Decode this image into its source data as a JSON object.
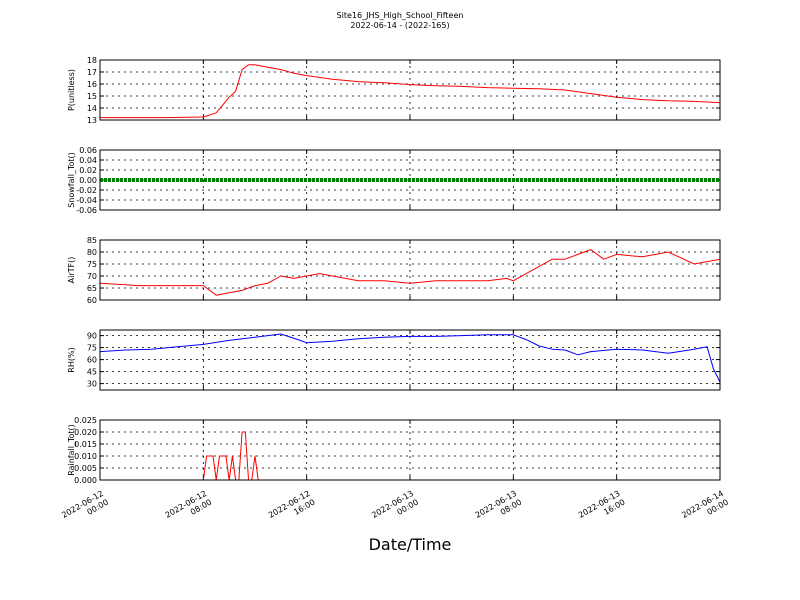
{
  "chart_data": {
    "type": "line",
    "title": "Site16_JHS_High_School_Fifteen",
    "subtitle": "2022-06-14 - (2022-165)",
    "xlabel": "Date/Time",
    "x_ticks": [
      "2022-06-12 00:00",
      "2022-06-12 08:00",
      "2022-06-12 16:00",
      "2022-06-13 00:00",
      "2022-06-13 08:00",
      "2022-06-13 16:00",
      "2022-06-14 00:00"
    ],
    "x_range": [
      "2022-06-12 00:00",
      "2022-06-14 00:00"
    ],
    "grid": true,
    "panels": [
      {
        "ylabel": "P(unitless)",
        "ylim": [
          13,
          18
        ],
        "yticks": [
          "13",
          "14",
          "15",
          "16",
          "17",
          "18"
        ],
        "color": "#ff0000",
        "x": [
          "2022-06-12 00:00",
          "2022-06-12 05:00",
          "2022-06-12 08:00",
          "2022-06-12 09:00",
          "2022-06-12 10:00",
          "2022-06-12 10:30",
          "2022-06-12 11:00",
          "2022-06-12 11:30",
          "2022-06-12 12:00",
          "2022-06-12 12:30",
          "2022-06-12 13:00",
          "2022-06-12 14:00",
          "2022-06-12 15:00",
          "2022-06-12 16:00",
          "2022-06-12 18:00",
          "2022-06-12 20:00",
          "2022-06-12 22:00",
          "2022-06-13 00:00",
          "2022-06-13 02:00",
          "2022-06-13 04:00",
          "2022-06-13 06:00",
          "2022-06-13 08:00",
          "2022-06-13 10:00",
          "2022-06-13 12:00",
          "2022-06-13 14:00",
          "2022-06-13 16:00",
          "2022-06-13 18:00",
          "2022-06-13 20:00",
          "2022-06-13 22:00",
          "2022-06-14 00:00"
        ],
        "values": [
          13.2,
          13.2,
          13.25,
          13.6,
          14.9,
          15.4,
          17.2,
          17.6,
          17.6,
          17.5,
          17.4,
          17.2,
          16.9,
          16.7,
          16.4,
          16.2,
          16.1,
          15.95,
          15.85,
          15.8,
          15.7,
          15.65,
          15.6,
          15.5,
          15.2,
          14.9,
          14.7,
          14.6,
          14.55,
          14.45
        ]
      },
      {
        "ylabel": "Snowfall_Tot()",
        "ylim": [
          -0.06,
          0.06
        ],
        "yticks": [
          "-0.06",
          "-0.04",
          "-0.02",
          "0.00",
          "0.02",
          "0.04",
          "0.06"
        ],
        "color": "#008000",
        "x": [
          "2022-06-12 00:00",
          "2022-06-14 00:00"
        ],
        "values": [
          0,
          0
        ]
      },
      {
        "ylabel": "AirTF()",
        "ylim": [
          60,
          85
        ],
        "yticks": [
          "60",
          "65",
          "70",
          "75",
          "80",
          "85"
        ],
        "color": "#ff0000",
        "x": [
          "2022-06-12 00:00",
          "2022-06-12 03:00",
          "2022-06-12 06:00",
          "2022-06-12 08:00",
          "2022-06-12 09:00",
          "2022-06-12 10:00",
          "2022-06-12 11:00",
          "2022-06-12 12:00",
          "2022-06-12 13:00",
          "2022-06-12 14:00",
          "2022-06-12 15:00",
          "2022-06-12 16:00",
          "2022-06-12 17:00",
          "2022-06-12 18:00",
          "2022-06-12 20:00",
          "2022-06-12 22:00",
          "2022-06-13 00:00",
          "2022-06-13 02:00",
          "2022-06-13 04:00",
          "2022-06-13 06:00",
          "2022-06-13 07:30",
          "2022-06-13 08:00",
          "2022-06-13 09:00",
          "2022-06-13 10:00",
          "2022-06-13 11:00",
          "2022-06-13 12:00",
          "2022-06-13 13:00",
          "2022-06-13 14:00",
          "2022-06-13 15:00",
          "2022-06-13 16:00",
          "2022-06-13 18:00",
          "2022-06-13 20:00",
          "2022-06-13 22:00",
          "2022-06-14 00:00"
        ],
        "values": [
          67,
          66,
          66,
          66,
          62,
          63,
          64,
          66,
          67,
          70,
          69,
          70,
          71,
          70,
          68,
          68,
          67,
          68,
          68,
          68,
          69,
          68,
          71,
          74,
          77,
          77,
          79,
          81,
          77,
          79,
          78,
          80,
          75,
          77
        ]
      },
      {
        "ylabel": "RH(%)",
        "ylim": [
          22,
          97
        ],
        "yticks": [
          "30",
          "45",
          "60",
          "75",
          "90"
        ],
        "color": "#0000ff",
        "x": [
          "2022-06-12 00:00",
          "2022-06-12 02:00",
          "2022-06-12 04:00",
          "2022-06-12 06:00",
          "2022-06-12 08:00",
          "2022-06-12 10:00",
          "2022-06-12 12:00",
          "2022-06-12 14:00",
          "2022-06-12 15:30",
          "2022-06-12 16:00",
          "2022-06-12 18:00",
          "2022-06-12 20:00",
          "2022-06-12 22:00",
          "2022-06-13 00:00",
          "2022-06-13 02:00",
          "2022-06-13 04:00",
          "2022-06-13 06:00",
          "2022-06-13 08:00",
          "2022-06-13 09:00",
          "2022-06-13 10:00",
          "2022-06-13 11:00",
          "2022-06-13 12:00",
          "2022-06-13 13:00",
          "2022-06-13 14:00",
          "2022-06-13 16:00",
          "2022-06-13 18:00",
          "2022-06-13 20:00",
          "2022-06-13 22:00",
          "2022-06-13 23:00",
          "2022-06-13 23:30",
          "2022-06-14 00:00"
        ],
        "values": [
          70,
          72,
          73,
          76,
          79,
          84,
          88,
          92,
          84,
          81,
          83,
          86,
          88,
          89,
          89,
          90,
          91,
          91,
          85,
          77,
          73,
          72,
          66,
          70,
          73,
          72,
          68,
          73,
          76,
          48,
          32
        ]
      },
      {
        "ylabel": "Rainfall_Tot()",
        "ylim": [
          0,
          0.025
        ],
        "yticks": [
          "0.000",
          "0.005",
          "0.010",
          "0.015",
          "0.020",
          "0.025"
        ],
        "color": "#ff0000",
        "x": [
          "2022-06-12 00:00",
          "2022-06-12 08:00",
          "2022-06-12 08:15",
          "2022-06-12 08:45",
          "2022-06-12 09:00",
          "2022-06-12 09:15",
          "2022-06-12 09:45",
          "2022-06-12 10:00",
          "2022-06-12 10:15",
          "2022-06-12 10:30",
          "2022-06-12 10:45",
          "2022-06-12 11:00",
          "2022-06-12 11:15",
          "2022-06-12 11:30",
          "2022-06-12 11:45",
          "2022-06-12 12:00",
          "2022-06-12 12:15",
          "2022-06-12 12:30",
          "2022-06-14 00:00"
        ],
        "values": [
          0,
          0,
          0.01,
          0.01,
          0,
          0.01,
          0.01,
          0,
          0.01,
          0,
          0,
          0.02,
          0.02,
          0,
          0,
          0.01,
          0,
          0,
          0
        ]
      }
    ]
  }
}
